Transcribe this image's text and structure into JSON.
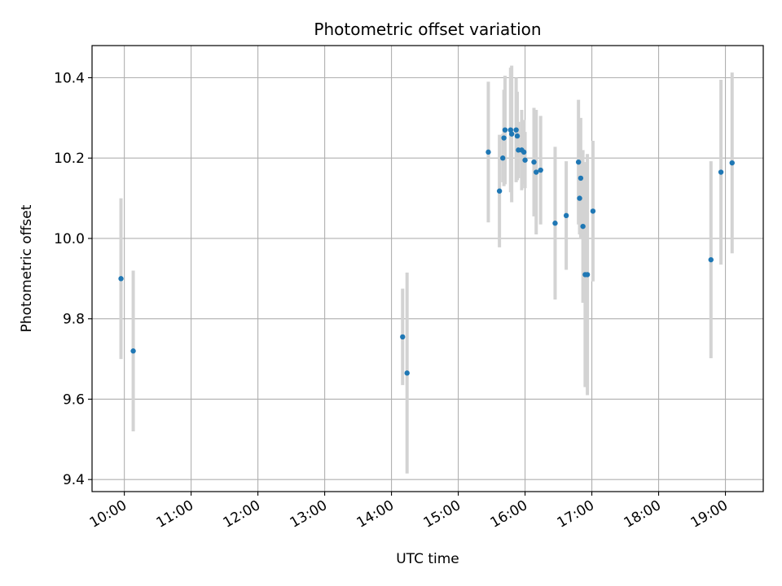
{
  "chart_data": {
    "type": "scatter",
    "title": "Photometric offset variation",
    "xlabel": "UTC time",
    "ylabel": "Photometric offset",
    "x_ticks": [
      "10:00",
      "11:00",
      "12:00",
      "13:00",
      "14:00",
      "15:00",
      "16:00",
      "17:00",
      "18:00",
      "19:00"
    ],
    "y_ticks": [
      "9.4",
      "9.6",
      "9.8",
      "10.0",
      "10.2",
      "10.4"
    ],
    "xlim": [
      "09:31",
      "19:34"
    ],
    "ylim": [
      9.37,
      10.48
    ],
    "grid": true,
    "colors": {
      "points": "#1f77b4",
      "errorbars": "#d3d3d3",
      "grid": "#b0b0b0"
    },
    "series": [
      {
        "points": [
          {
            "x": "09:57",
            "y": 9.9,
            "err": 0.2
          },
          {
            "x": "10:08",
            "y": 9.72,
            "err": 0.2
          },
          {
            "x": "14:10",
            "y": 9.755,
            "err": 0.12
          },
          {
            "x": "14:14",
            "y": 9.665,
            "err": 0.25
          },
          {
            "x": "15:27",
            "y": 10.215,
            "err": 0.175
          },
          {
            "x": "15:37",
            "y": 10.118,
            "err": 0.14
          },
          {
            "x": "15:40",
            "y": 10.2,
            "err": 0.06
          },
          {
            "x": "15:41",
            "y": 10.25,
            "err": 0.12
          },
          {
            "x": "15:42",
            "y": 10.27,
            "err": 0.135
          },
          {
            "x": "15:47",
            "y": 10.27,
            "err": 0.155
          },
          {
            "x": "15:48",
            "y": 10.26,
            "err": 0.17
          },
          {
            "x": "15:52",
            "y": 10.27,
            "err": 0.13
          },
          {
            "x": "15:53",
            "y": 10.255,
            "err": 0.11
          },
          {
            "x": "15:54",
            "y": 10.22,
            "err": 0.07
          },
          {
            "x": "15:57",
            "y": 10.22,
            "err": 0.1
          },
          {
            "x": "15:59",
            "y": 10.215,
            "err": 0.08
          },
          {
            "x": "16:00",
            "y": 10.195,
            "err": 0.07
          },
          {
            "x": "16:08",
            "y": 10.19,
            "err": 0.135
          },
          {
            "x": "16:10",
            "y": 10.165,
            "err": 0.155
          },
          {
            "x": "16:14",
            "y": 10.17,
            "err": 0.135
          },
          {
            "x": "16:27",
            "y": 10.038,
            "err": 0.19
          },
          {
            "x": "16:37",
            "y": 10.057,
            "err": 0.135
          },
          {
            "x": "16:48",
            "y": 10.19,
            "err": 0.155
          },
          {
            "x": "16:49",
            "y": 10.1,
            "err": 0.09
          },
          {
            "x": "16:50",
            "y": 10.15,
            "err": 0.15
          },
          {
            "x": "16:52",
            "y": 10.03,
            "err": 0.19
          },
          {
            "x": "16:54",
            "y": 9.91,
            "err": 0.28
          },
          {
            "x": "16:56",
            "y": 9.91,
            "err": 0.3
          },
          {
            "x": "17:01",
            "y": 10.068,
            "err": 0.175
          },
          {
            "x": "18:47",
            "y": 9.947,
            "err": 0.245
          },
          {
            "x": "18:56",
            "y": 10.165,
            "err": 0.23
          },
          {
            "x": "19:06",
            "y": 10.188,
            "err": 0.225
          }
        ]
      }
    ]
  }
}
